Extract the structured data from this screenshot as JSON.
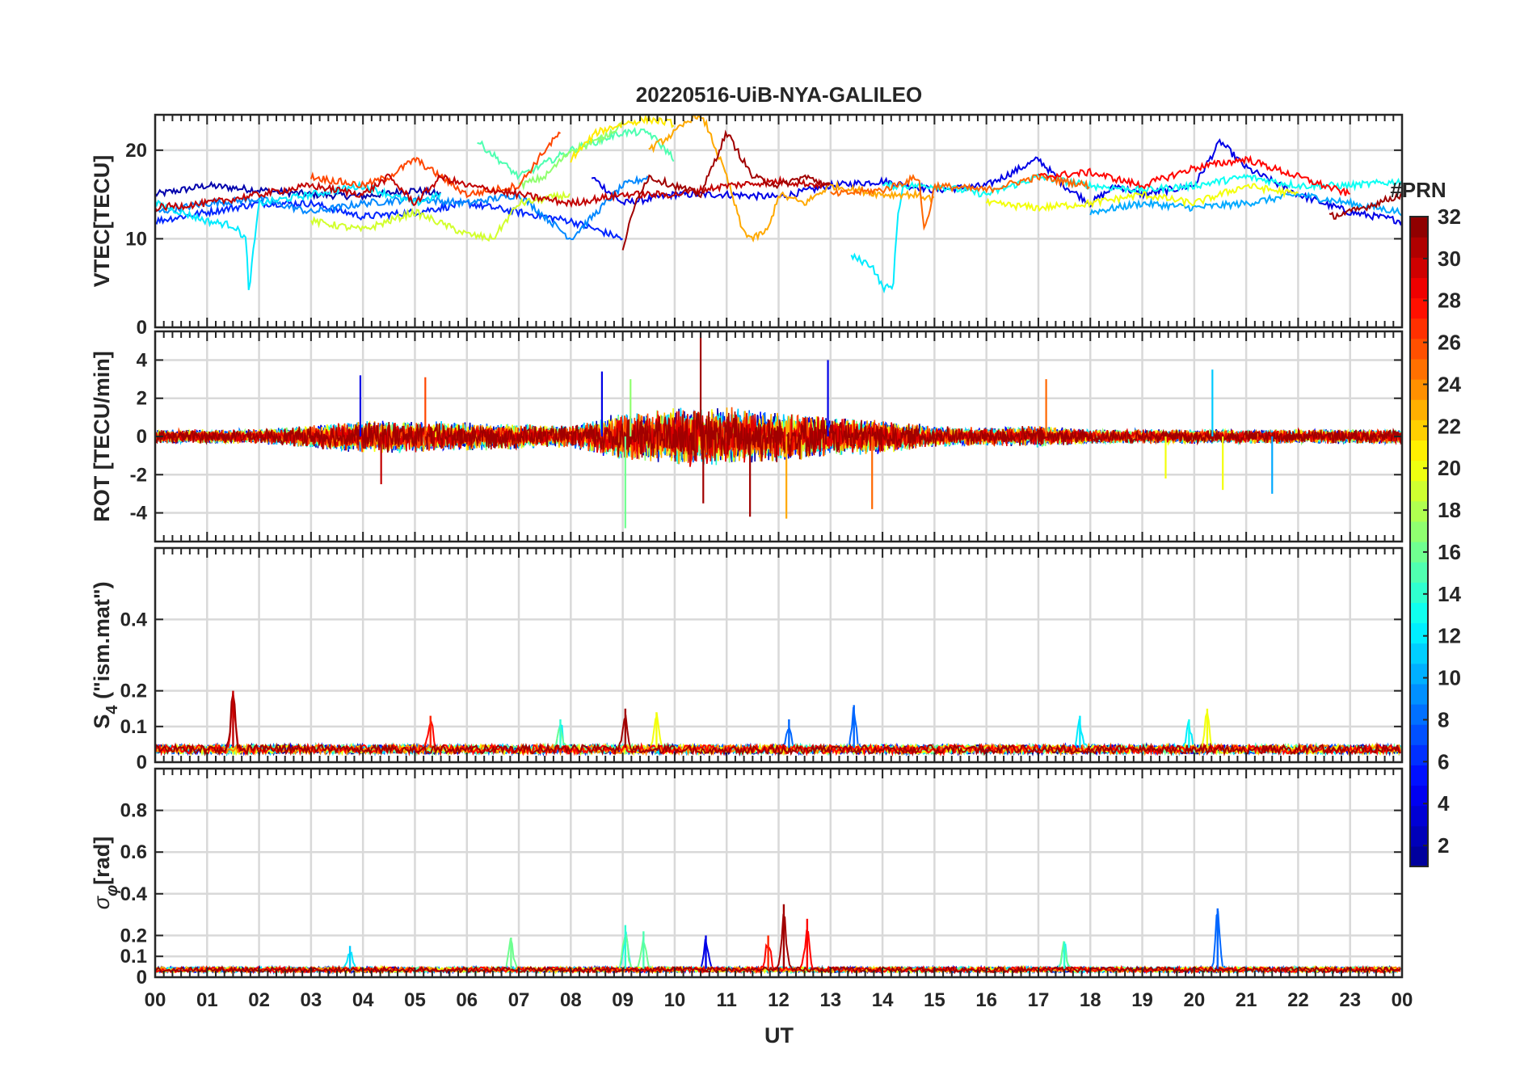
{
  "figure": {
    "title": "20220516-UiB-NYA-GALILEO",
    "xlabel": "UT",
    "x_ticks": [
      "00",
      "01",
      "02",
      "03",
      "04",
      "05",
      "06",
      "07",
      "08",
      "09",
      "10",
      "11",
      "12",
      "13",
      "14",
      "15",
      "16",
      "17",
      "18",
      "19",
      "20",
      "21",
      "22",
      "23",
      "00"
    ]
  },
  "colorbar": {
    "title": "#PRN",
    "range": [
      1,
      32
    ],
    "ticks": [
      2,
      4,
      6,
      8,
      10,
      12,
      14,
      16,
      18,
      20,
      22,
      24,
      26,
      28,
      30,
      32
    ],
    "colormap": "jet",
    "jet_stops": [
      "#00008f",
      "#0000ff",
      "#0080ff",
      "#00ffff",
      "#80ff80",
      "#ffff00",
      "#ff8000",
      "#ff0000",
      "#800000"
    ]
  },
  "chart_data": [
    {
      "type": "line",
      "panel": "vtec",
      "ylabel": "VTEC[TECU]",
      "ylim": [
        0,
        24
      ],
      "yticks": [
        0,
        10,
        20
      ],
      "x_unit": "hours UT",
      "xlim": [
        0,
        24
      ],
      "grid": true,
      "series": [
        {
          "prn": 2,
          "x": [
            0,
            1,
            2,
            3,
            4,
            5,
            5.5
          ],
          "y": [
            15,
            16,
            15.5,
            15,
            14.8,
            15.5,
            15
          ]
        },
        {
          "prn": 4,
          "x": [
            8.4,
            9,
            10,
            11,
            12,
            13,
            14,
            15,
            16,
            17,
            17.5,
            18,
            18.5,
            19,
            20,
            20.5,
            21,
            22,
            23,
            24
          ],
          "y": [
            17,
            14,
            15,
            15,
            14.7,
            16,
            16.5,
            15.5,
            16,
            19,
            16,
            14,
            16,
            15,
            16,
            21,
            18,
            15,
            13,
            12
          ]
        },
        {
          "prn": 6,
          "x": [
            0,
            1,
            2,
            3,
            4,
            5,
            6,
            7,
            8,
            9
          ],
          "y": [
            12,
            13,
            14,
            14,
            12.5,
            13,
            14,
            13,
            12,
            10
          ]
        },
        {
          "prn": 9,
          "x": [
            0,
            1,
            2,
            3,
            4,
            5,
            6,
            7,
            8,
            9,
            9.5
          ],
          "y": [
            13,
            14,
            14.5,
            13,
            14,
            14.5,
            14,
            15,
            10,
            16,
            17
          ]
        },
        {
          "prn": 10,
          "x": [
            18,
            19,
            20,
            21,
            22,
            23,
            24
          ],
          "y": [
            13,
            14,
            13.5,
            14,
            15,
            14,
            13
          ]
        },
        {
          "prn": 12,
          "x": [
            0,
            1,
            1.5,
            1.75,
            1.8,
            2,
            3,
            4,
            5,
            5.5
          ],
          "y": [
            14,
            12,
            11.5,
            10,
            4,
            14,
            15,
            16,
            14,
            15
          ]
        },
        {
          "prn": 12,
          "x": [
            13.4,
            13.8,
            14,
            14.2,
            14.3,
            14.4
          ],
          "y": [
            8,
            7,
            4.5,
            4.5,
            13,
            16
          ]
        },
        {
          "prn": 13,
          "x": [
            14,
            15,
            16,
            17,
            18,
            19,
            20,
            21,
            22,
            23,
            24
          ],
          "y": [
            16,
            16,
            15,
            17,
            16,
            15.5,
            16,
            17,
            16,
            16,
            16.5
          ]
        },
        {
          "prn": 15,
          "x": [
            6.2,
            7,
            8,
            8.5,
            9,
            9.5,
            10
          ],
          "y": [
            21,
            17,
            20,
            21,
            22,
            22,
            19
          ]
        },
        {
          "prn": 17,
          "x": [
            7,
            7.5,
            8,
            8.5,
            9
          ],
          "y": [
            16,
            17,
            20,
            21,
            23
          ]
        },
        {
          "prn": 19,
          "x": [
            3,
            4,
            5,
            6,
            6.5,
            7,
            8
          ],
          "y": [
            12,
            11,
            13,
            10.5,
            10,
            14,
            15
          ]
        },
        {
          "prn": 20,
          "x": [
            16,
            17,
            18,
            19,
            20,
            21,
            22
          ],
          "y": [
            14,
            13.5,
            14,
            15,
            14,
            16,
            15
          ]
        },
        {
          "prn": 21,
          "x": [
            8,
            8.5,
            9,
            9.5,
            10
          ],
          "y": [
            19,
            22,
            23,
            23.5,
            23
          ]
        },
        {
          "prn": 23,
          "x": [
            9.5,
            10,
            10.4,
            10.6,
            11,
            11.3,
            11.5,
            11.8,
            12,
            12.5,
            13,
            14,
            14.6,
            15
          ],
          "y": [
            20,
            22,
            24,
            23,
            17,
            11,
            10,
            11,
            15,
            14,
            16,
            15,
            15,
            14.5
          ]
        },
        {
          "prn": 25,
          "x": [
            13,
            14,
            14.7,
            14.8,
            14.9,
            15,
            16,
            17,
            18
          ],
          "y": [
            15,
            15.5,
            17,
            11,
            13,
            16,
            15.5,
            17,
            16
          ]
        },
        {
          "prn": 26,
          "x": [
            3,
            4,
            4.5,
            5,
            5.5,
            6,
            7,
            7.5,
            7.8
          ],
          "y": [
            17,
            16,
            17,
            19,
            17,
            15,
            16,
            20,
            22
          ]
        },
        {
          "prn": 28,
          "x": [
            17,
            18,
            19,
            20,
            21,
            22,
            23
          ],
          "y": [
            17,
            17.5,
            16,
            18,
            19,
            17,
            15
          ]
        },
        {
          "prn": 30,
          "x": [
            0,
            1,
            2,
            3,
            4,
            4.5,
            5,
            5.5,
            6,
            7,
            8,
            9,
            10,
            11,
            12,
            13
          ],
          "y": [
            13.5,
            14,
            15,
            16,
            15,
            17,
            14,
            17,
            16,
            15,
            14,
            15,
            15,
            16,
            16.5,
            16
          ]
        },
        {
          "prn": 31,
          "x": [
            9,
            9.3,
            9.5,
            10,
            10.5,
            11,
            11.5,
            12,
            12.5,
            13
          ],
          "y": [
            9,
            15,
            17,
            16,
            15,
            22,
            17,
            16,
            17,
            16
          ]
        },
        {
          "prn": 31,
          "x": [
            22.6,
            23,
            23.5,
            24
          ],
          "y": [
            12.5,
            13,
            14,
            15
          ]
        }
      ]
    },
    {
      "type": "line",
      "panel": "rot",
      "ylabel": "ROT [TECU/min]",
      "ylim": [
        -5.5,
        5.5
      ],
      "yticks": [
        -4,
        -2,
        0,
        2,
        4
      ],
      "x_unit": "hours UT",
      "xlim": [
        0,
        24
      ],
      "grid": true,
      "noise_envelope": {
        "hours": [
          0,
          2,
          4,
          6,
          8,
          9,
          10,
          11,
          12,
          13,
          14,
          15,
          16,
          17,
          18,
          20,
          22,
          24
        ],
        "amplitude": [
          0.4,
          0.4,
          0.9,
          0.8,
          0.6,
          1.3,
          1.6,
          1.6,
          1.4,
          1.1,
          0.9,
          0.6,
          0.5,
          0.6,
          0.4,
          0.4,
          0.4,
          0.4
        ]
      },
      "spikes": [
        {
          "prn": 4,
          "x": 3.95,
          "y": 3.2
        },
        {
          "prn": 30,
          "x": 4.35,
          "y": -2.5
        },
        {
          "prn": 26,
          "x": 5.2,
          "y": 3.1
        },
        {
          "prn": 4,
          "x": 8.6,
          "y": 3.4
        },
        {
          "prn": 16,
          "x": 9.05,
          "y": -4.8
        },
        {
          "prn": 17,
          "x": 9.15,
          "y": 3.0
        },
        {
          "prn": 31,
          "x": 10.5,
          "y": 5.5
        },
        {
          "prn": 31,
          "x": 10.55,
          "y": -3.5
        },
        {
          "prn": 31,
          "x": 11.45,
          "y": -4.2
        },
        {
          "prn": 23,
          "x": 12.15,
          "y": -4.3
        },
        {
          "prn": 4,
          "x": 12.95,
          "y": 4.0
        },
        {
          "prn": 25,
          "x": 13.8,
          "y": -3.8
        },
        {
          "prn": 25,
          "x": 17.15,
          "y": 3.0
        },
        {
          "prn": 20,
          "x": 19.45,
          "y": -2.2
        },
        {
          "prn": 11,
          "x": 20.35,
          "y": 3.5
        },
        {
          "prn": 20,
          "x": 20.55,
          "y": -2.8
        },
        {
          "prn": 10,
          "x": 21.5,
          "y": -3.0
        }
      ]
    },
    {
      "type": "line",
      "panel": "s4",
      "ylabel": "S4 (\"ism.mat\")",
      "ylabel_main": "S",
      "ylabel_sub": "4",
      "ylabel_rest": " (\"ism.mat\")",
      "ylim": [
        0,
        0.6
      ],
      "yticks": [
        0,
        0.1,
        0.2,
        0.4
      ],
      "x_unit": "hours UT",
      "xlim": [
        0,
        24
      ],
      "grid": true,
      "baseline": 0.04,
      "peaks": [
        {
          "prn": 30,
          "x": 1.5,
          "y": 0.2
        },
        {
          "prn": 27,
          "x": 5.3,
          "y": 0.13
        },
        {
          "prn": 14,
          "x": 7.8,
          "y": 0.12
        },
        {
          "prn": 31,
          "x": 9.05,
          "y": 0.15
        },
        {
          "prn": 20,
          "x": 9.65,
          "y": 0.14
        },
        {
          "prn": 8,
          "x": 13.45,
          "y": 0.16
        },
        {
          "prn": 8,
          "x": 12.2,
          "y": 0.12
        },
        {
          "prn": 12,
          "x": 17.8,
          "y": 0.13
        },
        {
          "prn": 13,
          "x": 19.9,
          "y": 0.12
        },
        {
          "prn": 20,
          "x": 20.25,
          "y": 0.15
        }
      ]
    },
    {
      "type": "line",
      "panel": "sigma_phi",
      "ylabel": "σφ[rad]",
      "ylabel_main": "σ",
      "ylabel_sub": "φ",
      "ylabel_rest": "[rad]",
      "ylim": [
        0,
        1.0
      ],
      "yticks": [
        0,
        0.1,
        0.2,
        0.4,
        0.6,
        0.8
      ],
      "x_unit": "hours UT",
      "xlim": [
        0,
        24
      ],
      "grid": true,
      "baseline": 0.04,
      "peaks": [
        {
          "prn": 11,
          "x": 3.75,
          "y": 0.15
        },
        {
          "prn": 16,
          "x": 6.85,
          "y": 0.19
        },
        {
          "prn": 14,
          "x": 9.05,
          "y": 0.25
        },
        {
          "prn": 15,
          "x": 9.4,
          "y": 0.22
        },
        {
          "prn": 4,
          "x": 10.6,
          "y": 0.2
        },
        {
          "prn": 27,
          "x": 11.8,
          "y": 0.2
        },
        {
          "prn": 31,
          "x": 12.1,
          "y": 0.35
        },
        {
          "prn": 28,
          "x": 12.55,
          "y": 0.28
        },
        {
          "prn": 14,
          "x": 17.5,
          "y": 0.17
        },
        {
          "prn": 8,
          "x": 20.45,
          "y": 0.33
        }
      ]
    }
  ]
}
